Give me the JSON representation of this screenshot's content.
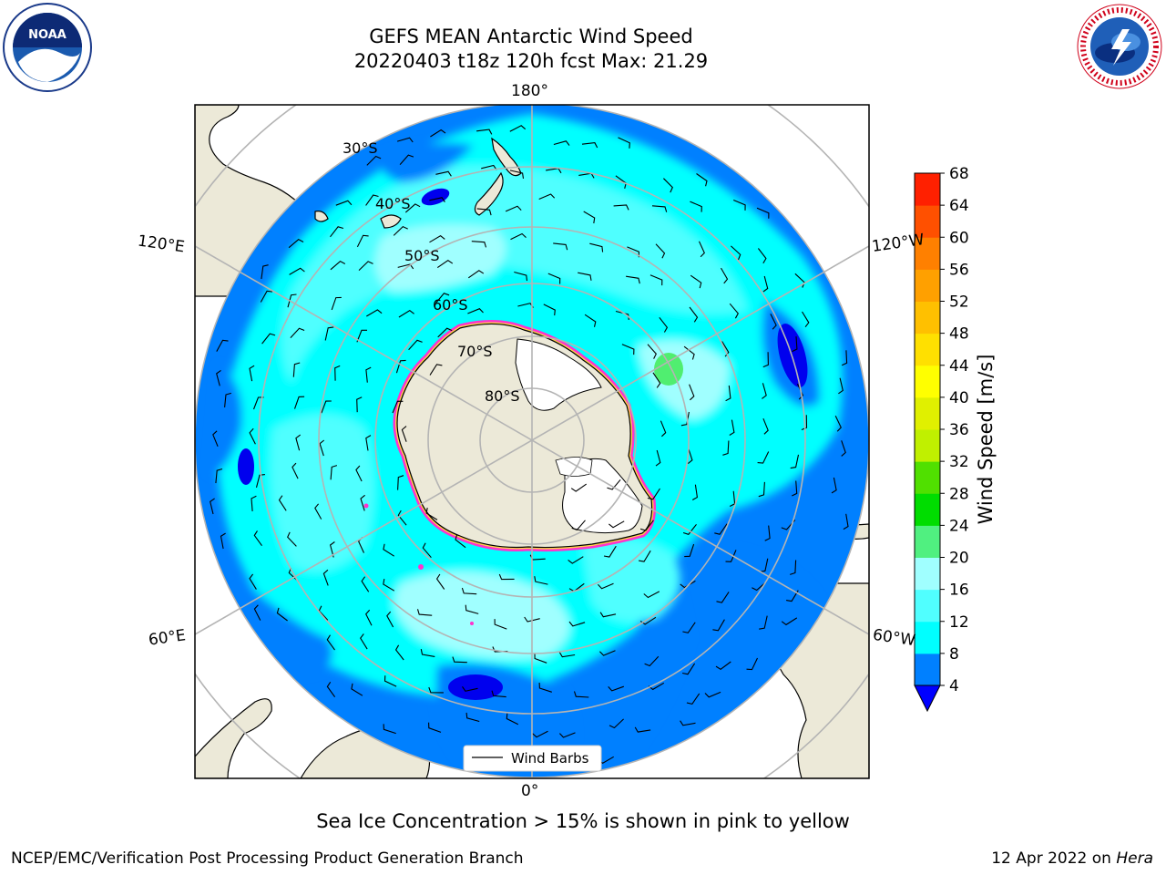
{
  "header": {
    "title_line1": "GEFS MEAN Antarctic Wind Speed",
    "title_line2": "20220403 t18z 120h fcst   Max: 21.29"
  },
  "logos": {
    "left": {
      "name": "noaa-logo",
      "text": "NOAA"
    },
    "right": {
      "name": "nws-logo",
      "text": "NATIONAL WEATHER SERVICE"
    }
  },
  "map": {
    "projection": "south-polar-stereographic",
    "longitude_labels": {
      "top": "180°",
      "bottom": "0°",
      "left_upper": "120°E",
      "left_lower": "60°E",
      "right_upper": "120°W",
      "right_lower": "60°W"
    },
    "latitude_labels": [
      "30°S",
      "40°S",
      "50°S",
      "60°S",
      "70°S",
      "80°S"
    ],
    "legend_label": "Wind Barbs",
    "colors": {
      "land": "#ece9d8",
      "ocean_4_8": "#0080ff",
      "ocean_8_12": "#00ffff",
      "ocean_12_16": "#50ffff",
      "ocean_16_20": "#a0ffff",
      "ocean_20_24": "#50ff80",
      "ocean_below_4": "#0000ee",
      "sea_ice": "#ff33cc",
      "graticule": "#b4b4b4"
    }
  },
  "colorbar": {
    "label": "Wind Speed [m/s]",
    "ticks": [
      "4",
      "8",
      "12",
      "16",
      "20",
      "24",
      "28",
      "32",
      "36",
      "40",
      "44",
      "48",
      "52",
      "56",
      "60",
      "64",
      "68"
    ],
    "colors": [
      "#0080ff",
      "#00ffff",
      "#50ffff",
      "#a0ffff",
      "#50f080",
      "#00dd00",
      "#50e000",
      "#c0f000",
      "#e0f000",
      "#ffff00",
      "#ffe000",
      "#ffc000",
      "#ffa000",
      "#ff8000",
      "#ff5000",
      "#ff2000"
    ],
    "under_color": "#0000ff"
  },
  "caption": "Sea Ice Concentration > 15% is shown in pink to yellow",
  "footer": {
    "left": "NCEP/EMC/Verification Post Processing Product Generation Branch",
    "right_prefix": "12 Apr 2022 on ",
    "right_host": "Hera"
  }
}
